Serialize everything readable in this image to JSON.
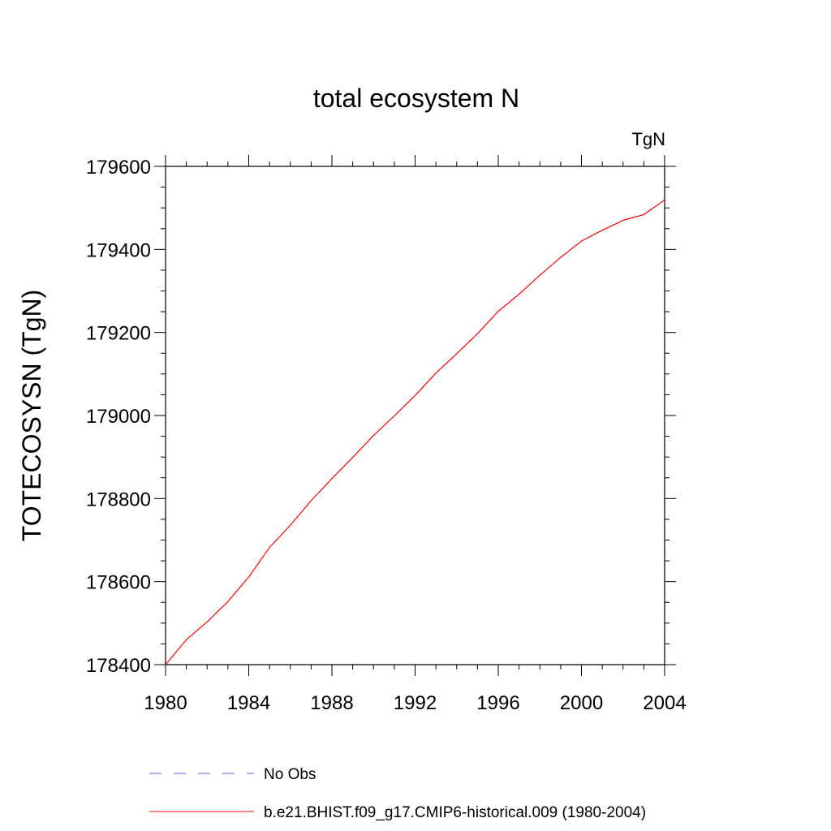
{
  "chart_data": {
    "type": "line",
    "title": "total ecosystem N",
    "units_label": "TgN",
    "xlabel": "",
    "ylabel": "TOTECOSYSN  (TgN)",
    "xlim": [
      1980,
      2004
    ],
    "ylim": [
      178400,
      179600
    ],
    "xticks": [
      1980,
      1984,
      1988,
      1992,
      1996,
      2000,
      2004
    ],
    "xtick_labels": [
      "1980",
      "1984",
      "1988",
      "1992",
      "1996",
      "2000",
      "2004"
    ],
    "yticks": [
      178400,
      178600,
      178800,
      179000,
      179200,
      179400,
      179600
    ],
    "ytick_labels": [
      "178400",
      "178600",
      "178800",
      "179000",
      "179200",
      "179400",
      "179600"
    ],
    "x_minor_step": 1,
    "y_minor_step": 50,
    "grid": false,
    "legend_position": "bottom",
    "series": [
      {
        "name": "b.e21.BHIST.f09_g17.CMIP6-historical.009 (1980-2004)",
        "color": "#ff0000",
        "style": "solid",
        "x": [
          1980,
          1981,
          1982,
          1983,
          1984,
          1985,
          1986,
          1987,
          1988,
          1989,
          1990,
          1991,
          1992,
          1993,
          1994,
          1995,
          1996,
          1997,
          1998,
          1999,
          2000,
          2001,
          2002,
          2003,
          2004
        ],
        "y": [
          178400,
          178460,
          178503,
          178552,
          178611,
          178682,
          178736,
          178795,
          178848,
          178899,
          178952,
          178999,
          179048,
          179102,
          179149,
          179197,
          179251,
          179292,
          179338,
          179381,
          179420,
          179446,
          179470,
          179484,
          179519
        ]
      }
    ],
    "legend": [
      {
        "label": "No Obs",
        "color": "#6a5acd",
        "style": "dashed"
      },
      {
        "label": "b.e21.BHIST.f09_g17.CMIP6-historical.009 (1980-2004)",
        "color": "#ff0000",
        "style": "solid"
      }
    ]
  }
}
